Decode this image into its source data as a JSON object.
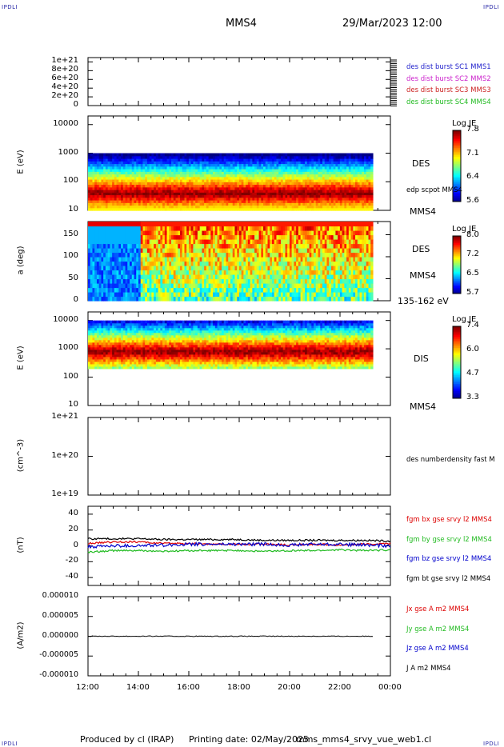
{
  "header": {
    "corner_left_top": "IPDLI",
    "corner_right_top": "IPDLI",
    "corner_left_bottom": "IPDLI",
    "corner_right_bottom": "IPDLI",
    "spacecraft": "MMS4",
    "datetime": "29/Mar/2023 12:00"
  },
  "footer": {
    "produced_by": "Produced by cl (IRAP)",
    "printing_date": "Printing date: 02/May/2025",
    "config": "mms_mms4_srvy_vue_web1.cl"
  },
  "time_axis": {
    "ticks": [
      "12:00",
      "14:00",
      "16:00",
      "18:00",
      "20:00",
      "22:00",
      "00:00"
    ],
    "range_hours": [
      12,
      24
    ],
    "data_end_hour": 23.3
  },
  "chart_data": [
    {
      "id": "panel1",
      "type": "line",
      "y_ticks": [
        "1e+21",
        "8e+20",
        "6e+20",
        "4e+20",
        "2e+20",
        "0"
      ],
      "ylim": [
        0,
        1.1e+21
      ],
      "legend": [
        {
          "label": "des dist burst SC1 MMS1",
          "color": "#2222cc"
        },
        {
          "label": "des dist burst SC2 MMS2",
          "color": "#cc22cc"
        },
        {
          "label": "des dist burst SC3 MMS3",
          "color": "#cc2222"
        },
        {
          "label": "des dist burst SC4 MMS4",
          "color": "#22bb22"
        }
      ]
    },
    {
      "id": "panel2",
      "type": "heatmap",
      "ylabel": "E (eV)",
      "y_ticks": [
        "10000",
        "1000",
        "100",
        "10"
      ],
      "y_scale": "log",
      "ylim": [
        10,
        20000
      ],
      "data_y_range": [
        10,
        1000
      ],
      "band_peak": 40,
      "side_labels": [
        "DES",
        "edp scpot MMS4",
        "MMS4"
      ],
      "colorbar": {
        "title": "Log JE",
        "ticks": [
          "7.8",
          "7.1",
          "6.4",
          "5.6"
        ]
      }
    },
    {
      "id": "panel3",
      "type": "heatmap",
      "ylabel": "a (deg)",
      "y_ticks": [
        "150",
        "100",
        "50",
        "0"
      ],
      "ylim": [
        0,
        180
      ],
      "side_labels": [
        "DES",
        "MMS4",
        "135-162 eV"
      ],
      "colorbar": {
        "title": "Log JE",
        "ticks": [
          "8.0",
          "7.2",
          "6.5",
          "5.7"
        ]
      }
    },
    {
      "id": "panel4",
      "type": "heatmap",
      "ylabel": "E (eV)",
      "y_ticks": [
        "10000",
        "1000",
        "100",
        "10"
      ],
      "y_scale": "log",
      "ylim": [
        10,
        20000
      ],
      "data_y_range": [
        200,
        10000
      ],
      "band_peak": 800,
      "side_labels": [
        "DIS",
        "MMS4"
      ],
      "colorbar": {
        "title": "Log JE",
        "ticks": [
          "7.4",
          "6.0",
          "4.7",
          "3.3"
        ]
      }
    },
    {
      "id": "panel5",
      "type": "line",
      "ylabel": "(cm^-3)",
      "y_ticks": [
        "1e+21",
        "1e+20",
        "1e+19"
      ],
      "y_scale": "log",
      "ylim": [
        1e+19,
        1e+21
      ],
      "side_labels": [
        "des numberdensity fast M"
      ]
    },
    {
      "id": "panel6",
      "type": "line",
      "ylabel": "(nT)",
      "y_ticks": [
        "40",
        "20",
        "0",
        "-20",
        "-40"
      ],
      "ylim": [
        -50,
        50
      ],
      "x": [
        12,
        13,
        14,
        15,
        16,
        17,
        18,
        19,
        20,
        21,
        22,
        23,
        24
      ],
      "series": [
        {
          "name": "fgm bx gse srvy l2 MMS4",
          "color": "#dd0000",
          "values": [
            3,
            5,
            5,
            3,
            3,
            2,
            2,
            2,
            1,
            2,
            1,
            2,
            3
          ]
        },
        {
          "name": "fgm by gse srvy l2 MMS4",
          "color": "#22bb22",
          "values": [
            -8,
            -6,
            -6,
            -7,
            -6,
            -6,
            -6,
            -7,
            -6,
            -6,
            -5,
            -6,
            -5
          ]
        },
        {
          "name": "fgm bz gse srvy l2 MMS4",
          "color": "#0000cc",
          "values": [
            -1,
            0,
            0,
            1,
            2,
            2,
            2,
            2,
            1,
            2,
            2,
            1,
            0
          ]
        },
        {
          "name": "fgm bt gse srvy l2 MMS4",
          "color": "#000000",
          "values": [
            9,
            9,
            9,
            8,
            8,
            8,
            8,
            7,
            7,
            7,
            7,
            7,
            6
          ]
        }
      ]
    },
    {
      "id": "panel7",
      "type": "line",
      "ylabel": "(A/m2)",
      "y_ticks": [
        "0.000010",
        "0.000005",
        "0.000000",
        "-0.000005",
        "-0.000010"
      ],
      "ylim": [
        -1e-05,
        1e-05
      ],
      "series": [
        {
          "name": "Jx gse A m2 MMS4",
          "color": "#dd0000"
        },
        {
          "name": "Jy gse A m2 MMS4",
          "color": "#22bb22"
        },
        {
          "name": "Jz gse A m2 MMS4",
          "color": "#0000cc"
        },
        {
          "name": "J A m2 MMS4",
          "color": "#000000"
        }
      ]
    }
  ]
}
